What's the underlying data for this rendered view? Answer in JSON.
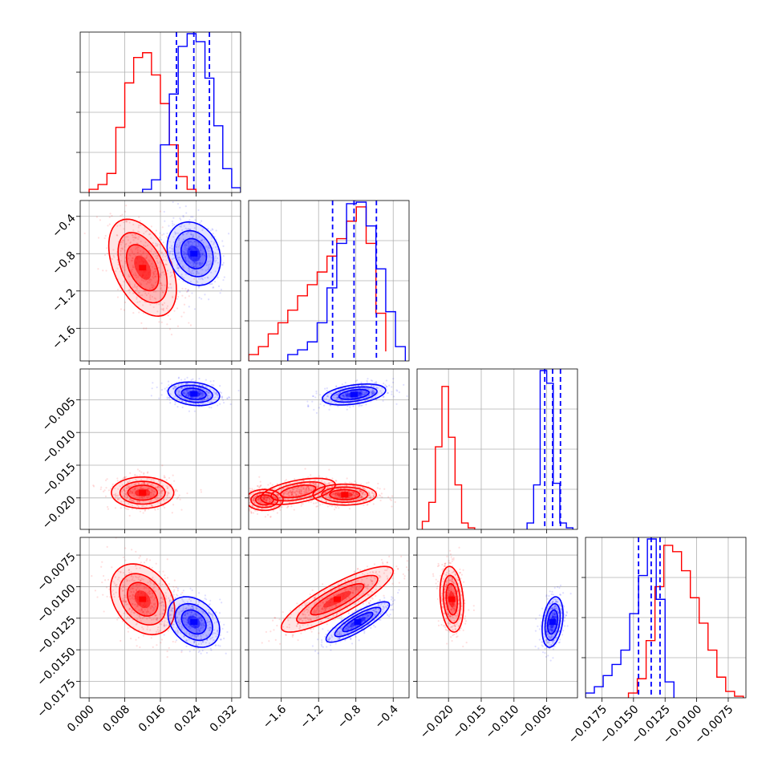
{
  "chart_data": {
    "type": "corner",
    "grid": true,
    "series": [
      {
        "name": "",
        "color": "#ff0000"
      },
      {
        "name": "",
        "color": "#0000ff"
      }
    ],
    "parameters": [
      {
        "range": [
          -0.002,
          0.034
        ],
        "ticks": [
          0.0,
          0.008,
          0.016,
          0.024,
          0.032
        ],
        "tick_labels": [
          "0.000",
          "0.008",
          "0.016",
          "0.024",
          "0.032"
        ]
      },
      {
        "range": [
          -1.95,
          -0.23
        ],
        "ticks": [
          -1.6,
          -1.2,
          -0.8,
          -0.4
        ],
        "tick_labels": [
          "−1.6",
          "−1.2",
          "−0.8",
          "−0.4"
        ]
      },
      {
        "range": [
          -0.0248,
          -0.0003
        ],
        "ticks": [
          -0.02,
          -0.015,
          -0.01,
          -0.005
        ],
        "tick_labels": [
          "−0.020",
          "−0.015",
          "−0.010",
          "−0.005"
        ]
      },
      {
        "range": [
          -0.0188,
          -0.0061
        ],
        "ticks": [
          -0.0175,
          -0.015,
          -0.0125,
          -0.01,
          -0.0075
        ],
        "tick_labels": [
          "−0.0175",
          "−0.0150",
          "−0.0125",
          "−0.0100",
          "−0.0075"
        ]
      }
    ],
    "diagonal_histograms": [
      {
        "red": {
          "edges": [
            0.0,
            0.002,
            0.004,
            0.006,
            0.008,
            0.01,
            0.012,
            0.014,
            0.016,
            0.018,
            0.02,
            0.022,
            0.024
          ],
          "counts": [
            0.02,
            0.05,
            0.12,
            0.41,
            0.69,
            0.85,
            0.88,
            0.74,
            0.56,
            0.3,
            0.1,
            0.02
          ]
        },
        "blue": {
          "edges": [
            0.012,
            0.014,
            0.016,
            0.018,
            0.02,
            0.022,
            0.024,
            0.026,
            0.028,
            0.03,
            0.032,
            0.034
          ],
          "counts": [
            0.02,
            0.08,
            0.3,
            0.62,
            0.92,
            1.0,
            0.95,
            0.72,
            0.42,
            0.15,
            0.03
          ]
        },
        "quantiles": [
          0.0196,
          0.0235,
          0.027
        ],
        "ylim": [
          0,
          1.0
        ]
      },
      {
        "red": {
          "edges": [
            -1.95,
            -1.845,
            -1.74,
            -1.635,
            -1.53,
            -1.425,
            -1.32,
            -1.215,
            -1.11,
            -1.005,
            -0.9,
            -0.795,
            -0.69,
            -0.585,
            -0.48
          ],
          "counts": [
            0.04,
            0.09,
            0.17,
            0.24,
            0.32,
            0.41,
            0.48,
            0.56,
            0.66,
            0.77,
            0.88,
            0.97,
            0.74,
            0.3,
            0.06
          ]
        },
        "blue": {
          "edges": [
            -1.53,
            -1.425,
            -1.32,
            -1.215,
            -1.11,
            -1.005,
            -0.9,
            -0.795,
            -0.69,
            -0.585,
            -0.48,
            -0.375,
            -0.27
          ],
          "counts": [
            0.04,
            0.07,
            0.12,
            0.24,
            0.46,
            0.74,
            0.99,
            1.0,
            0.85,
            0.58,
            0.31,
            0.09
          ]
        },
        "quantiles": [
          -1.05,
          -0.82,
          -0.58
        ],
        "ylim": [
          0,
          1.0
        ]
      },
      {
        "red": {
          "edges": [
            -0.024,
            -0.023,
            -0.022,
            -0.021,
            -0.02,
            -0.019,
            -0.018,
            -0.017,
            -0.016
          ],
          "counts": [
            0.05,
            0.17,
            0.52,
            0.9,
            0.58,
            0.28,
            0.04,
            0.01
          ]
        },
        "blue": {
          "edges": [
            -0.008,
            -0.007,
            -0.006,
            -0.005,
            -0.004,
            -0.003,
            -0.002,
            -0.001
          ],
          "counts": [
            0.04,
            0.28,
            1.0,
            0.92,
            0.29,
            0.04,
            0.01
          ]
        },
        "quantiles": [
          -0.0053,
          -0.0041,
          -0.0029
        ],
        "ylim": [
          0,
          1.0
        ]
      },
      {
        "red": {
          "edges": [
            -0.0154,
            -0.0147,
            -0.014,
            -0.0133,
            -0.0126,
            -0.0119,
            -0.0112,
            -0.0105,
            -0.0098,
            -0.0091,
            -0.0084,
            -0.0077,
            -0.007,
            -0.0063
          ],
          "counts": [
            0.03,
            0.12,
            0.36,
            0.7,
            0.96,
            0.92,
            0.8,
            0.63,
            0.47,
            0.3,
            0.13,
            0.04,
            0.01
          ]
        },
        "blue": {
          "edges": [
            -0.0188,
            -0.0181,
            -0.0174,
            -0.0167,
            -0.016,
            -0.0153,
            -0.0146,
            -0.0139,
            -0.0132,
            -0.0125,
            -0.0118
          ],
          "counts": [
            0.03,
            0.07,
            0.14,
            0.21,
            0.3,
            0.53,
            0.77,
            1.0,
            0.62,
            0.1
          ]
        },
        "quantiles": [
          -0.0146,
          -0.0136,
          -0.0129
        ],
        "ylim": [
          0,
          1.0
        ]
      }
    ],
    "joint_distributions": [
      {
        "x_param": 0,
        "y_param": 1,
        "red": [
          {
            "cx": 0.012,
            "cy": -0.95,
            "sx": 0.0038,
            "sy": 0.26,
            "rho": -0.45
          }
        ],
        "blue": [
          {
            "cx": 0.0235,
            "cy": -0.8,
            "sx": 0.003,
            "sy": 0.17,
            "rho": -0.2
          }
        ]
      },
      {
        "x_param": 0,
        "y_param": 2,
        "red": [
          {
            "cx": 0.012,
            "cy": -0.0192,
            "sx": 0.0035,
            "sy": 0.0012,
            "rho": 0.0
          }
        ],
        "blue": [
          {
            "cx": 0.0235,
            "cy": -0.0041,
            "sx": 0.0029,
            "sy": 0.0009,
            "rho": -0.2
          }
        ]
      },
      {
        "x_param": 0,
        "y_param": 3,
        "red": [
          {
            "cx": 0.012,
            "cy": -0.011,
            "sx": 0.0036,
            "sy": 0.0014,
            "rho": -0.3
          }
        ],
        "blue": [
          {
            "cx": 0.0235,
            "cy": -0.0128,
            "sx": 0.0029,
            "sy": 0.001,
            "rho": -0.3
          }
        ]
      },
      {
        "x_param": 1,
        "y_param": 2,
        "red": [
          {
            "cx": -0.92,
            "cy": -0.0195,
            "sx": 0.17,
            "sy": 0.0008,
            "rho": 0.0
          },
          {
            "cx": -1.42,
            "cy": -0.019,
            "sx": 0.2,
            "sy": 0.001,
            "rho": 0.5
          },
          {
            "cx": -1.78,
            "cy": -0.0203,
            "sx": 0.1,
            "sy": 0.0008,
            "rho": 0.0
          }
        ],
        "blue": [
          {
            "cx": -0.82,
            "cy": -0.0042,
            "sx": 0.17,
            "sy": 0.0008,
            "rho": 0.4
          }
        ]
      },
      {
        "x_param": 1,
        "y_param": 3,
        "red": [
          {
            "cx": -1.0,
            "cy": -0.011,
            "sx": 0.3,
            "sy": 0.0013,
            "rho": 0.85
          }
        ],
        "blue": [
          {
            "cx": -0.78,
            "cy": -0.0128,
            "sx": 0.17,
            "sy": 0.0008,
            "rho": 0.85
          }
        ]
      },
      {
        "x_param": 2,
        "y_param": 3,
        "red": [
          {
            "cx": -0.0195,
            "cy": -0.011,
            "sx": 0.0009,
            "sy": 0.0013,
            "rho": -0.2
          }
        ],
        "blue": [
          {
            "cx": -0.0041,
            "cy": -0.0128,
            "sx": 0.0008,
            "sy": 0.001,
            "rho": 0.3
          }
        ]
      }
    ]
  }
}
